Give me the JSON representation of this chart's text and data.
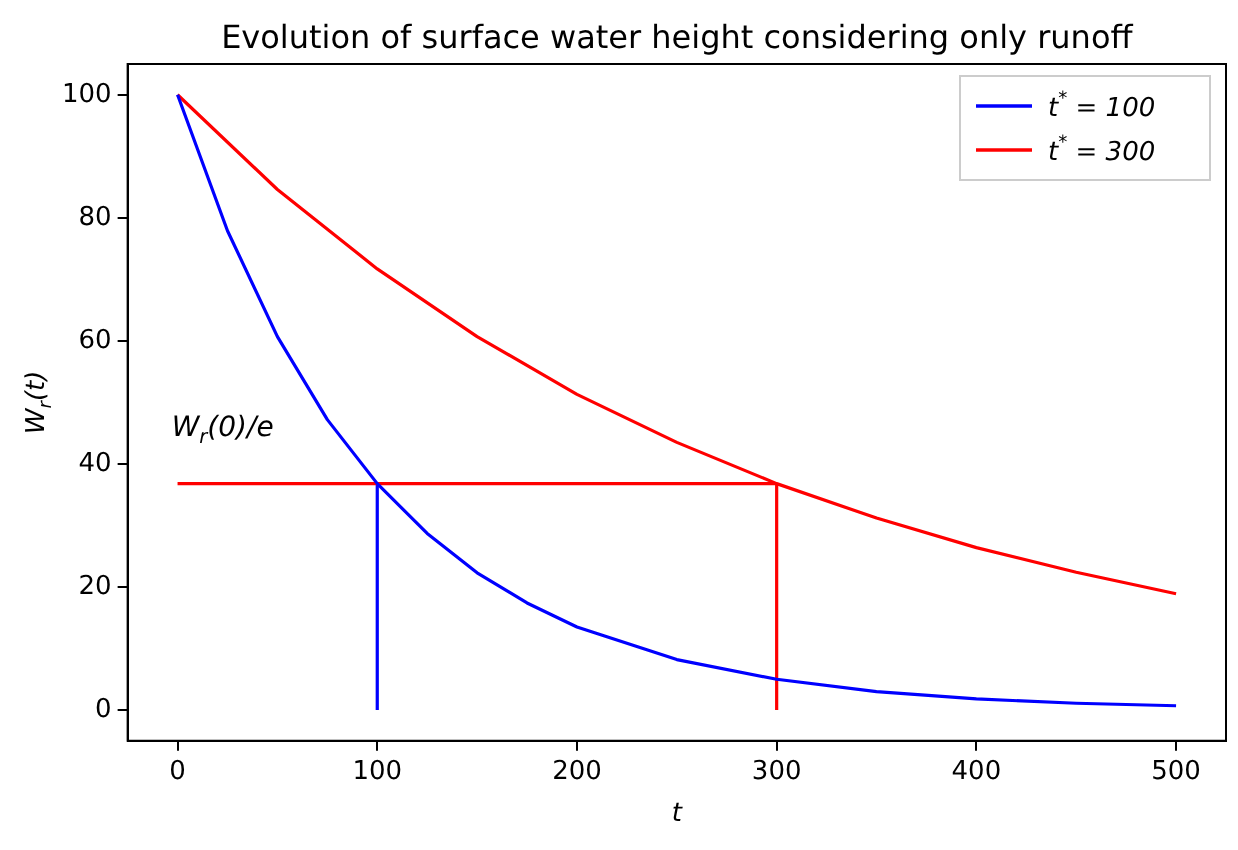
{
  "chart_data": {
    "type": "line",
    "title": "Evolution of surface water height considering only runoff",
    "xlabel": "t",
    "ylabel": "W$_{r}$(t)",
    "xlim": [
      -25,
      525
    ],
    "ylim": [
      -5,
      105
    ],
    "xticks": [
      0,
      100,
      200,
      300,
      400,
      500
    ],
    "yticks": [
      0,
      20,
      40,
      60,
      80,
      100
    ],
    "grid": false,
    "legend": "top right",
    "marker": "none",
    "line_style": "solid",
    "series": [
      {
        "name": "t$^{*}$ = 100",
        "color": "#0000ff",
        "x": [
          0,
          25,
          50,
          75,
          100,
          125,
          150,
          175,
          200,
          250,
          300,
          350,
          400,
          450,
          500
        ],
        "values": [
          100,
          77.9,
          60.7,
          47.2,
          36.8,
          28.7,
          22.3,
          17.4,
          13.5,
          8.2,
          5.0,
          3.0,
          1.8,
          1.1,
          0.7
        ]
      },
      {
        "name": "t$^{*}$ = 300",
        "color": "#ff0000",
        "x": [
          0,
          50,
          100,
          150,
          200,
          250,
          300,
          350,
          400,
          450,
          500
        ],
        "values": [
          100,
          84.6,
          71.7,
          60.7,
          51.3,
          43.5,
          36.8,
          31.2,
          26.4,
          22.4,
          18.9
        ]
      },
      {
        "color": "#ff0000",
        "x": [
          0,
          300
        ],
        "values": [
          36.8,
          36.8
        ]
      },
      {
        "color": "#0000ff",
        "x": [
          100,
          100
        ],
        "values": [
          0,
          36.8
        ]
      },
      {
        "color": "#ff0000",
        "x": [
          300,
          300
        ],
        "values": [
          0,
          36.8
        ]
      }
    ],
    "annotations": [
      "W$_{r}$(0)/e"
    ]
  }
}
